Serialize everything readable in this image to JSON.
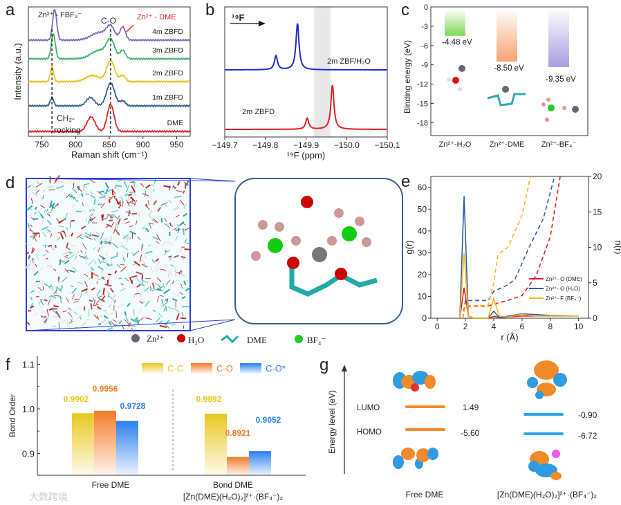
{
  "panel_labels": [
    "a",
    "b",
    "c",
    "d",
    "e",
    "f",
    "g"
  ],
  "chart_data": [
    {
      "id": "a",
      "type": "line",
      "xlabel": "Raman shift (cm⁻¹)",
      "ylabel": "Intensity (a.u.)",
      "xlim": [
        730,
        970
      ],
      "xticks": [
        750,
        800,
        850,
        900,
        950
      ],
      "annotations": {
        "zn_fbf3": "Zn²⁺ - FBF₃⁻",
        "co": "C-O",
        "zn_dme": "Zn²⁺ - DME",
        "ch2": "CH₂-",
        "rocking": "rocking"
      },
      "dashed_lines_x": [
        765,
        852
      ],
      "series": [
        {
          "name": "DME",
          "color": "#e02020",
          "peaks": [
            [
              823,
              0.35,
              6
            ],
            [
              852,
              0.65,
              5
            ]
          ]
        },
        {
          "name": "1m ZBFD",
          "color": "#2f5f8f",
          "peaks": [
            [
              765,
              0.2,
              2.5
            ],
            [
              822,
              0.2,
              6
            ],
            [
              852,
              0.55,
              6
            ],
            [
              870,
              0.12,
              4
            ]
          ]
        },
        {
          "name": "2m ZBFD",
          "color": "#f0c020",
          "peaks": [
            [
              765,
              0.35,
              2.5
            ],
            [
              825,
              0.15,
              10
            ],
            [
              852,
              0.5,
              6
            ],
            [
              870,
              0.15,
              4
            ]
          ]
        },
        {
          "name": "3m ZBFD",
          "color": "#3cb371",
          "peaks": [
            [
              767,
              0.6,
              3
            ],
            [
              835,
              0.2,
              12
            ],
            [
              852,
              0.42,
              6
            ],
            [
              870,
              0.2,
              4
            ]
          ]
        },
        {
          "name": "4m ZBFD",
          "color": "#7b68c8",
          "peaks": [
            [
              769,
              0.75,
              3
            ],
            [
              835,
              0.18,
              12
            ],
            [
              852,
              0.3,
              6
            ],
            [
              870,
              0.32,
              4
            ]
          ]
        }
      ]
    },
    {
      "id": "b",
      "type": "line",
      "xlabel": "¹⁹F (ppm)",
      "nucleus": "¹⁹F",
      "xlim": [
        -149.7,
        -150.1
      ],
      "xticks": [
        "−149.7",
        "−149.8",
        "−149.9",
        "−150.0",
        "−150.1"
      ],
      "shaded_range": [
        -149.92,
        -149.96
      ],
      "series": [
        {
          "name": "2m ZBF/H₂O",
          "color": "#1c2bd0",
          "peaks": [
            [
              -149.826,
              0.3
            ],
            [
              -149.879,
              1.0
            ]
          ]
        },
        {
          "name": "2m ZBFD",
          "color": "#e02020",
          "peaks": [
            [
              -149.903,
              0.25
            ],
            [
              -149.965,
              1.0
            ]
          ]
        }
      ]
    },
    {
      "id": "c",
      "type": "bar",
      "ylabel": "Binding energy (eV)",
      "ylim": [
        -20,
        0
      ],
      "yticks": [
        0,
        -3,
        -6,
        -9,
        -12,
        -15,
        -18
      ],
      "categories": [
        "Zn²⁺-H₂O",
        "Zn²⁺-DME",
        "Zn²⁺-BF₄⁻"
      ],
      "values": [
        -4.48,
        -8.5,
        -9.35
      ],
      "value_labels": [
        "-4.48 eV",
        "-8.50 eV",
        "-9.35 eV"
      ],
      "colors": [
        "#7ed957",
        "#f4a570",
        "#a89ee0"
      ]
    },
    {
      "id": "e",
      "type": "line",
      "xlabel": "r (Å)",
      "ylabel": "g(r)",
      "y2label": "n(r)",
      "xlim": [
        -0.45,
        10.7
      ],
      "xticks": [
        0,
        2,
        4,
        6,
        8,
        10
      ],
      "ylim": [
        0,
        65
      ],
      "yticks": [
        0,
        10,
        20,
        30,
        40,
        50,
        60
      ],
      "y2lim": [
        0,
        20
      ],
      "y2ticks": [
        0,
        5,
        10,
        15,
        20
      ],
      "series": [
        {
          "name": "Zn²⁺- O (DME)",
          "color": "#e02020",
          "g": [
            [
              1.6,
              0
            ],
            [
              1.9,
              14
            ],
            [
              2.2,
              1
            ],
            [
              2.6,
              0
            ],
            [
              3.6,
              0
            ],
            [
              4,
              0.8
            ],
            [
              4.5,
              0.3
            ],
            [
              6,
              1
            ],
            [
              10,
              1
            ]
          ],
          "n": [
            [
              1.8,
              0
            ],
            [
              2.0,
              1.7
            ],
            [
              3.6,
              1.7
            ],
            [
              4,
              2
            ],
            [
              5,
              2.5
            ],
            [
              6,
              3.2
            ],
            [
              7,
              6
            ],
            [
              8,
              11.5
            ],
            [
              8.7,
              20
            ]
          ]
        },
        {
          "name": "Zn²⁺- O (H₂O)",
          "color": "#2f5f9f",
          "g": [
            [
              1.6,
              0
            ],
            [
              1.9,
              56
            ],
            [
              2.2,
              1
            ],
            [
              2.6,
              0
            ],
            [
              3.6,
              0
            ],
            [
              4,
              3.2
            ],
            [
              4.4,
              0.3
            ],
            [
              6,
              2
            ],
            [
              8,
              1.3
            ],
            [
              10,
              1
            ]
          ],
          "n": [
            [
              1.8,
              0
            ],
            [
              2.0,
              2.5
            ],
            [
              3.6,
              2.5
            ],
            [
              4,
              3.8
            ],
            [
              5,
              4.7
            ],
            [
              5.5,
              5.5
            ],
            [
              6.5,
              10
            ],
            [
              7.5,
              14
            ],
            [
              8.3,
              20
            ]
          ]
        },
        {
          "name": "Zn²⁺- F (BF₄⁻)",
          "color": "#f5b820",
          "g": [
            [
              1.6,
              0
            ],
            [
              1.9,
              30
            ],
            [
              2.2,
              1
            ],
            [
              2.6,
              0
            ],
            [
              3.6,
              0
            ],
            [
              4,
              9
            ],
            [
              4.4,
              1
            ],
            [
              5,
              0.5
            ],
            [
              6,
              1.8
            ],
            [
              7,
              1
            ],
            [
              10,
              1
            ]
          ],
          "n": [
            [
              1.8,
              0
            ],
            [
              2.0,
              1.8
            ],
            [
              3.6,
              1.8
            ],
            [
              4,
              5
            ],
            [
              4.3,
              9
            ],
            [
              5,
              10
            ],
            [
              6,
              14.5
            ],
            [
              6.6,
              20
            ]
          ]
        }
      ]
    },
    {
      "id": "f",
      "type": "bar",
      "ylabel": "Bond Order",
      "ylim": [
        0.852,
        1.12
      ],
      "yticks": [
        "0.9",
        "1.0",
        "1.1"
      ],
      "categories": [
        "Free DME",
        "Bond DME"
      ],
      "category_sub": "[Zn(DME)(H₂O)₂]²⁺·(BF₄⁻)₂",
      "series": [
        {
          "name": "C-C",
          "color": "#e8c81e",
          "values": [
            0.9902,
            0.9892
          ],
          "labels": [
            "0.9902",
            "0.9892"
          ]
        },
        {
          "name": "C-O",
          "color": "#f57c2a",
          "values": [
            0.9956,
            0.8921
          ],
          "labels": [
            "0.9956",
            "0.8921"
          ]
        },
        {
          "name": "C-O*",
          "color": "#2a7ff0",
          "values": [
            0.9728,
            0.9052
          ],
          "labels": [
            "0.9728",
            "0.9052"
          ]
        }
      ]
    },
    {
      "id": "g",
      "type": "diagram",
      "ylabel": "Energy level (eV)",
      "level_labels": [
        "LUMO",
        "HOMO"
      ],
      "systems": [
        {
          "name": "Free DME",
          "color": "#f5882a",
          "lumo": "1.49",
          "homo": "-5.60"
        },
        {
          "name": "[Zn(DME)(H₂O)₂]²⁺·(BF₄⁻)₂",
          "color": "#2aa8ee",
          "lumo": "-0.90",
          "homo": "-6.72"
        }
      ]
    }
  ],
  "legend_d": {
    "zn": "Zn²⁺",
    "h2o": "H₂O",
    "dme": "DME",
    "bf4": "BF₄⁻"
  },
  "watermark": "大数跨境"
}
